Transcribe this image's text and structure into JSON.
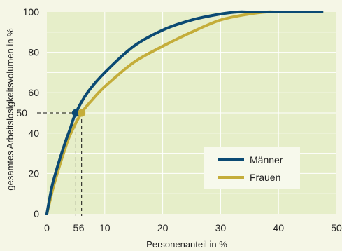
{
  "chart_data": {
    "type": "line",
    "title": "",
    "xlabel": "Personenanteil in %",
    "ylabel": "gesamtes Arbeitslosigkeitsvolumen in %",
    "xlim": [
      0,
      50
    ],
    "ylim": [
      0,
      100
    ],
    "x_ticks": [
      0,
      10,
      20,
      30,
      40,
      50
    ],
    "y_ticks": [
      0,
      20,
      40,
      60,
      80,
      100
    ],
    "extra_x_ticks": [
      5,
      6
    ],
    "extra_y_ticks": [
      50
    ],
    "grid": true,
    "legend_position": "bottom-right",
    "series": [
      {
        "name": "Männer",
        "color": "#0b4a73",
        "x": [
          0,
          0.5,
          1,
          2,
          3,
          4,
          5,
          7,
          10,
          15,
          20,
          25,
          30,
          33,
          35,
          40,
          47.5
        ],
        "y": [
          0,
          8,
          15,
          25,
          34,
          42,
          50,
          60,
          70,
          83,
          91,
          96,
          99,
          100,
          100,
          100,
          100
        ]
      },
      {
        "name": "Frauen",
        "color": "#c4ad3a",
        "x": [
          0,
          0.5,
          1,
          2,
          3,
          4,
          6,
          8,
          10,
          15,
          20,
          25,
          30,
          35,
          38,
          40,
          47.5
        ],
        "y": [
          0,
          6,
          12,
          22,
          31,
          39,
          50,
          57,
          63,
          75,
          83,
          90,
          96,
          99,
          100,
          100,
          100
        ]
      }
    ],
    "markers": [
      {
        "series": "Männer",
        "x": 5,
        "y": 50,
        "color": "#0b4a73"
      },
      {
        "series": "Frauen",
        "x": 6,
        "y": 50,
        "color": "#c4ad3a"
      }
    ]
  },
  "colors": {
    "plot_background": "#e6eec9",
    "page_background": "#f5f6e6",
    "grid": "#ffffff",
    "text": "#222222",
    "legend_background": "#f7f9ec"
  }
}
